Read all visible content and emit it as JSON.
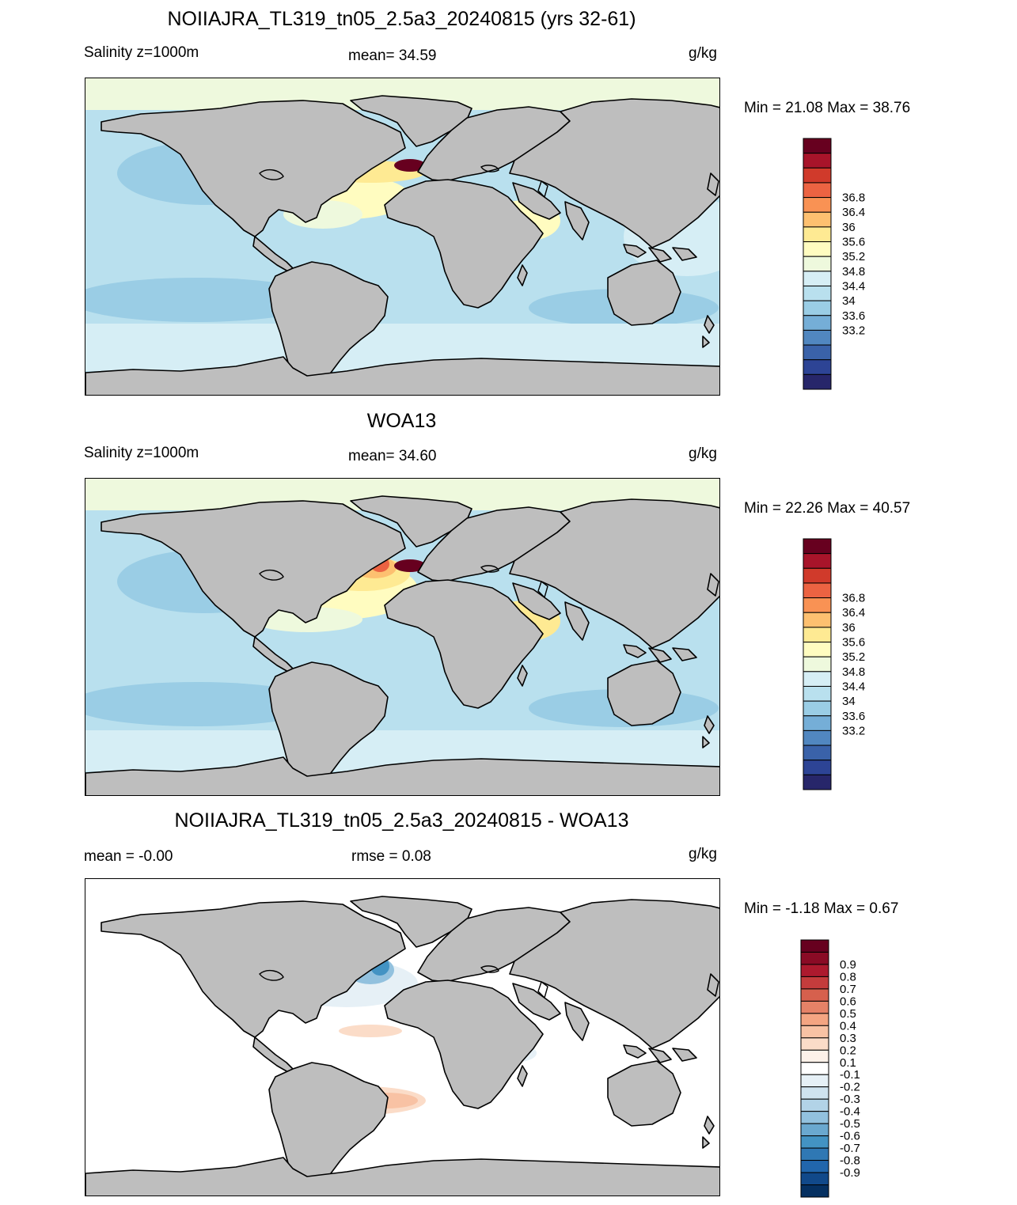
{
  "panels": [
    {
      "title": "NOIIAJRA_TL319_tn05_2.5a3_20240815 (yrs 32-61)",
      "left_label": "Salinity z=1000m",
      "center_label": "mean=  34.59",
      "units": "g/kg",
      "minmax": "Min =  21.08 Max =  38.76",
      "colorbar": {
        "labels": [
          "36.8",
          "36.4",
          "36",
          "35.6",
          "35.2",
          "34.8",
          "34.4",
          "34",
          "33.6",
          "33.2"
        ],
        "colors": [
          "#67001f",
          "#a8142a",
          "#d03a2b",
          "#ec6342",
          "#f99254",
          "#fdc070",
          "#feea93",
          "#fffcc0",
          "#eef9dd",
          "#d6eef5",
          "#b9e0ee",
          "#9acde5",
          "#75aed7",
          "#5187c0",
          "#3a62a9",
          "#2d4495",
          "#27266a"
        ]
      }
    },
    {
      "title": "WOA13",
      "left_label": "Salinity z=1000m",
      "center_label": "mean=  34.60",
      "units": "g/kg",
      "minmax": "Min =  22.26 Max =  40.57",
      "colorbar": {
        "labels": [
          "36.8",
          "36.4",
          "36",
          "35.6",
          "35.2",
          "34.8",
          "34.4",
          "34",
          "33.6",
          "33.2"
        ],
        "colors": [
          "#67001f",
          "#a8142a",
          "#d03a2b",
          "#ec6342",
          "#f99254",
          "#fdc070",
          "#feea93",
          "#fffcc0",
          "#eef9dd",
          "#d6eef5",
          "#b9e0ee",
          "#9acde5",
          "#75aed7",
          "#5187c0",
          "#3a62a9",
          "#2d4495",
          "#27266a"
        ]
      }
    },
    {
      "title": "NOIIAJRA_TL319_tn05_2.5a3_20240815 - WOA13",
      "left_label": "mean =  -0.00",
      "center_label": "rmse =   0.08",
      "units": "g/kg",
      "minmax": "Min =  -1.18 Max =   0.67",
      "colorbar": {
        "labels": [
          "0.9",
          "0.8",
          "0.7",
          "0.6",
          "0.5",
          "0.4",
          "0.3",
          "0.2",
          "0.1",
          "-0.1",
          "-0.2",
          "-0.3",
          "-0.4",
          "-0.5",
          "-0.6",
          "-0.7",
          "-0.8",
          "-0.9"
        ],
        "colors": [
          "#67001f",
          "#8a0b25",
          "#ad1a2e",
          "#c43c3c",
          "#d6604d",
          "#e58267",
          "#f4a582",
          "#f8c2a4",
          "#fbdcc8",
          "#fdf1e9",
          "#ffffff",
          "#e6f0f6",
          "#cfe3ef",
          "#b2d3e7",
          "#92c1de",
          "#6aa8cf",
          "#4393c3",
          "#2f78b4",
          "#2166ac",
          "#11498a",
          "#053061"
        ]
      }
    }
  ],
  "colors": {
    "land": "#bebebe",
    "ocean_base_sal": "#b9e0ee",
    "ocean_base_diff": "#ffffff",
    "arctic": "#eef9dd",
    "coast": "#000000"
  }
}
